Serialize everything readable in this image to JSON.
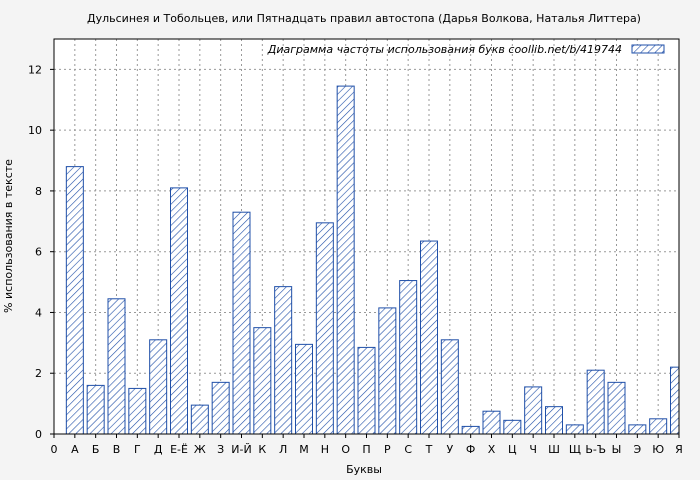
{
  "chart_data": {
    "type": "bar",
    "title": "Дульсинея и Тобольцев, или Пятнадцать правил автостопа (Дарья Волкова, Наталья Литтера)",
    "legend_label": "Диаграмма частоты использования букв  coollib.net/b/419744",
    "legend_position": "top-right",
    "xlabel": "Буквы",
    "ylabel": "% использования в тексте",
    "ylim": [
      0,
      13
    ],
    "yticks": [
      0,
      2,
      4,
      6,
      8,
      10,
      12
    ],
    "grid": true,
    "colors": {
      "bar_stroke": "#1f4fa8",
      "bar_fill": "#ffffff",
      "hatch": "#1f4fa8",
      "grid": "#999999"
    },
    "categories": [
      "0",
      "А",
      "Б",
      "В",
      "Г",
      "Д",
      "Е-Ё",
      "Ж",
      "З",
      "И-Й",
      "К",
      "Л",
      "М",
      "Н",
      "О",
      "П",
      "Р",
      "С",
      "Т",
      "У",
      "Ф",
      "Х",
      "Ц",
      "Ч",
      "Ш",
      "Щ",
      "Ь-Ъ",
      "Ы",
      "Э",
      "Ю",
      "Я"
    ],
    "values": [
      0,
      8.8,
      1.6,
      4.45,
      1.5,
      3.1,
      8.1,
      0.95,
      1.7,
      7.3,
      3.5,
      4.85,
      2.95,
      6.95,
      11.45,
      2.85,
      4.15,
      5.05,
      6.35,
      3.1,
      0.25,
      0.75,
      0.45,
      1.55,
      0.9,
      0.3,
      2.1,
      1.7,
      0.3,
      0.5,
      2.2
    ]
  }
}
